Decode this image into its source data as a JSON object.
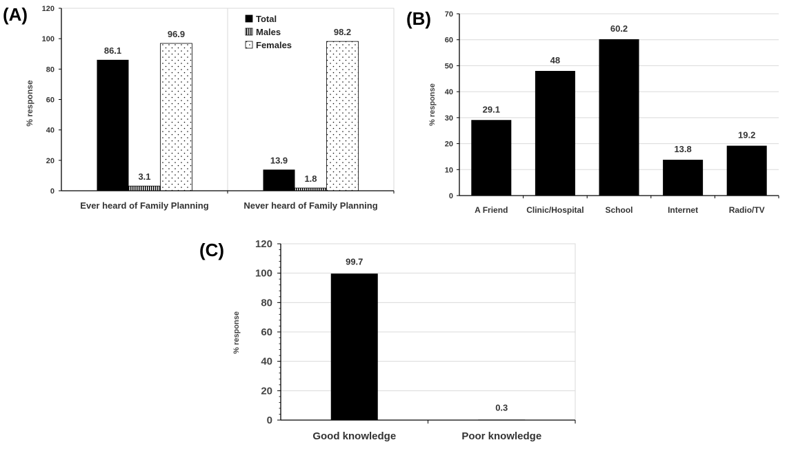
{
  "chart_data": [
    {
      "panel": "(A)",
      "type": "bar",
      "categories": [
        "Ever heard of Family Planning",
        "Never heard of Family Planning"
      ],
      "series": [
        {
          "name": "Total",
          "values": [
            86.1,
            13.9
          ],
          "pattern": "solid"
        },
        {
          "name": "Males",
          "values": [
            3.1,
            1.8
          ],
          "pattern": "vertical-stripes"
        },
        {
          "name": "Females",
          "values": [
            96.9,
            98.2
          ],
          "pattern": "dots"
        }
      ],
      "data_labels": [
        [
          "86.1",
          "13.9"
        ],
        [
          "3.1",
          "1.8"
        ],
        [
          "96.9",
          "98.2"
        ]
      ],
      "ylabel": "% response",
      "ylim": [
        0,
        120
      ],
      "yticks": [
        0,
        20,
        40,
        60,
        80,
        100,
        120
      ],
      "legend": "top-center",
      "grid": "vertical separator between categories"
    },
    {
      "panel": "(B)",
      "type": "bar",
      "categories": [
        "A Friend",
        "Clinic/Hospital",
        "School",
        "Internet",
        "Radio/TV"
      ],
      "values": [
        29.1,
        48,
        60.2,
        13.8,
        19.2
      ],
      "data_labels": [
        "29.1",
        "48",
        "60.2",
        "13.8",
        "19.2"
      ],
      "ylabel": "% response",
      "ylim": [
        0,
        70
      ],
      "yticks": [
        0,
        10,
        20,
        30,
        40,
        50,
        60,
        70
      ],
      "grid": "horizontal"
    },
    {
      "panel": "(C)",
      "type": "bar",
      "categories": [
        "Good knowledge",
        "Poor knowledge"
      ],
      "values": [
        99.7,
        0.3
      ],
      "data_labels": [
        "99.7",
        "0.3"
      ],
      "ylabel": "% response",
      "ylim": [
        0,
        120
      ],
      "yticks": [
        0,
        20,
        40,
        60,
        80,
        100,
        120
      ],
      "grid": "horizontal"
    }
  ],
  "colors": {
    "bar": "#000000",
    "grid": "#d9d9d9",
    "axis": "#000000"
  }
}
